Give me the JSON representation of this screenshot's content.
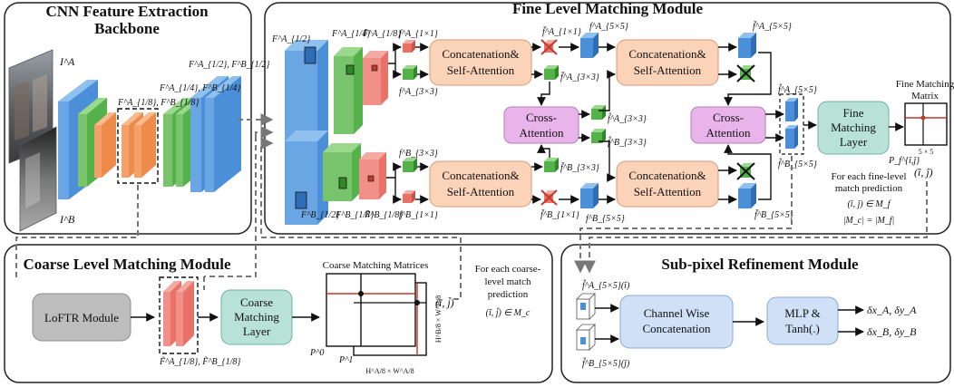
{
  "modules": {
    "backbone": {
      "title_line1": "CNN Feature Extraction",
      "title_line2": "Backbone"
    },
    "fine": {
      "title": "Fine Level Matching Module"
    },
    "coarse": {
      "title": "Coarse Level Matching Module"
    },
    "subpixel": {
      "title": "Sub-pixel Refinement Module"
    }
  },
  "backbone_labels": {
    "img_a": "I^A",
    "img_b": "I^B",
    "f18": "F^A_{1/8}, F^B_{1/8}",
    "f14": "F^A_{1/4}, F^B_{1/4}",
    "f12": "F^A_{1/2}, F^B_{1/2}"
  },
  "fine_labels": {
    "fa12": "F^A_{1/2}",
    "fa14": "F^A_{1/4}",
    "fa18": "F̄^A_{1/8}",
    "fb12": "F^B_{1/2}",
    "fb14": "F^B_{1/4}",
    "fb18": "F̄^B_{1/8}",
    "fa1x1": "f^A_{1×1}",
    "fa3x3": "f^A_{3×3}",
    "fb3x3": "f^B_{3×3}",
    "fb1x1": "f^B_{1×1}",
    "fa1x1_bar": "f̄^A_{1×1}",
    "fa3x3_bar": "f̄^A_{3×3}",
    "fa5x5": "f^A_{5×5}",
    "fa5x5_bar": "f̄^A_{5×5}",
    "fb5x5": "f^B_{5×5}",
    "fb5x5_bar": "f̄^B_{5×5}",
    "fb3x3_bar": "f̄^B_{3×3}",
    "fb1x1_bar": "f̄^B_{1×1}",
    "mid_a3x3": "f̂^A_{3×3}",
    "mid_b3x3": "f̂^B_{3×3}",
    "right_a5x5": "f̂^A_{5×5}",
    "right_b5x5": "f̂^B_{5×5}",
    "concat_sa": "Concatenation&",
    "concat_sa2": "Self-Attention",
    "cross1": "Cross-",
    "cross2": "Attention",
    "fine_layer1": "Fine",
    "fine_layer2": "Matching",
    "fine_layer3": "Layer",
    "fm_matrix1": "Fine Matching",
    "fm_matrix2": "Matrix",
    "p_f": "P_f^{î,ĵ}",
    "five": "5 × 5",
    "ij_hat": "(î, ĵ)",
    "note1": "For each fine-level",
    "note2": "match prediction",
    "note3": "(î, ĵ) ∈ M_f",
    "note4": "|M_c| = |M_f|"
  },
  "coarse_labels": {
    "loftr": "LoFTR Module",
    "f18": "F̃^A_{1/8}, F̃^B_{1/8}",
    "cml1": "Coarse",
    "cml2": "Matching",
    "cml3": "Layer",
    "cmm": "Coarse Matching Matrices",
    "p0": "P^0",
    "p1": "P^1",
    "ij": "(ĩ, j̃)",
    "dim_h": "H^B/8 × W^B/8",
    "dim_w": "H^A/8 × W^A/8",
    "note1": "For each coarse-",
    "note2": "level match",
    "note3": "prediction",
    "note4": "(ĩ, j̃) ∈ M_c"
  },
  "subpixel_labels": {
    "fa": "f̂^A_{5×5}(î)",
    "fb": "f̂^B_{5×5}(ĵ)",
    "cwc1": "Channel Wise",
    "cwc2": "Concatenation",
    "mlp1": "MLP &",
    "mlp2": "Tanh(.)",
    "out_a": "δx_A, δy_A",
    "out_b": "δx_B, δy_B"
  }
}
